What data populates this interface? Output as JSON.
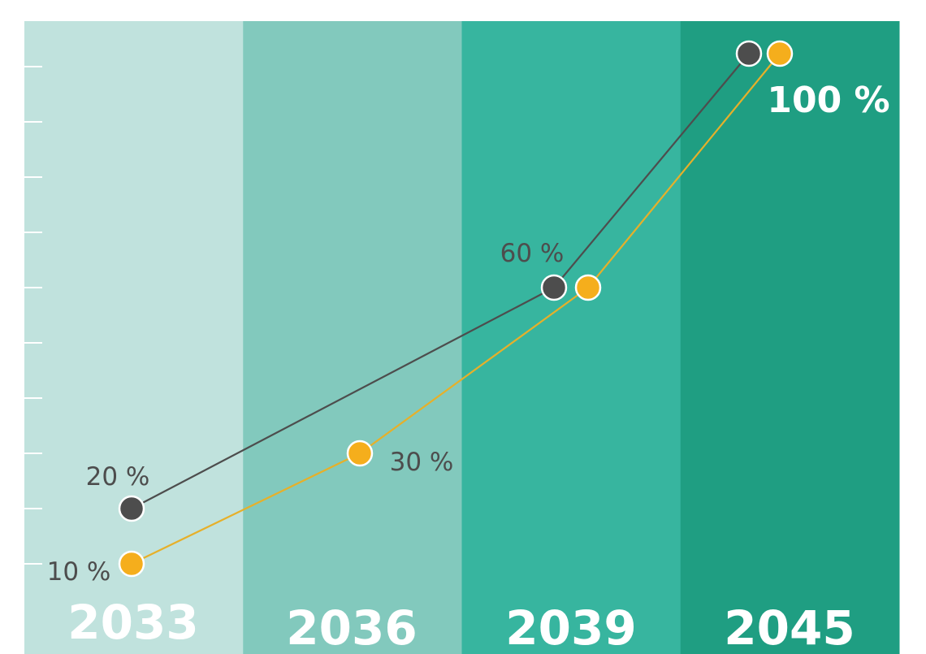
{
  "chart_data": {
    "type": "line",
    "title": "",
    "xlabel": "",
    "ylabel": "",
    "categories": [
      "2033",
      "2036",
      "2039",
      "2045"
    ],
    "ylim": [
      10,
      100
    ],
    "y_ticks_count": 10,
    "grid": false,
    "band_colors": [
      "#c0e2dd",
      "#82c9bd",
      "#37b59f",
      "#1f9e82"
    ],
    "series": [
      {
        "name": "dark series",
        "color": "#4d4d4d",
        "points": [
          {
            "category": "2033",
            "value": 20
          },
          {
            "category": "2039",
            "value": 60
          },
          {
            "category": "2045",
            "value": 100
          }
        ]
      },
      {
        "name": "orange series",
        "color": "#f5ae1c",
        "points": [
          {
            "category": "2033",
            "value": 10
          },
          {
            "category": "2036",
            "value": 30
          },
          {
            "category": "2039",
            "value": 60
          },
          {
            "category": "2045",
            "value": 100
          }
        ]
      }
    ],
    "data_labels": [
      "20 %",
      "10 %",
      "30 %",
      "60 %",
      "100 %"
    ]
  }
}
